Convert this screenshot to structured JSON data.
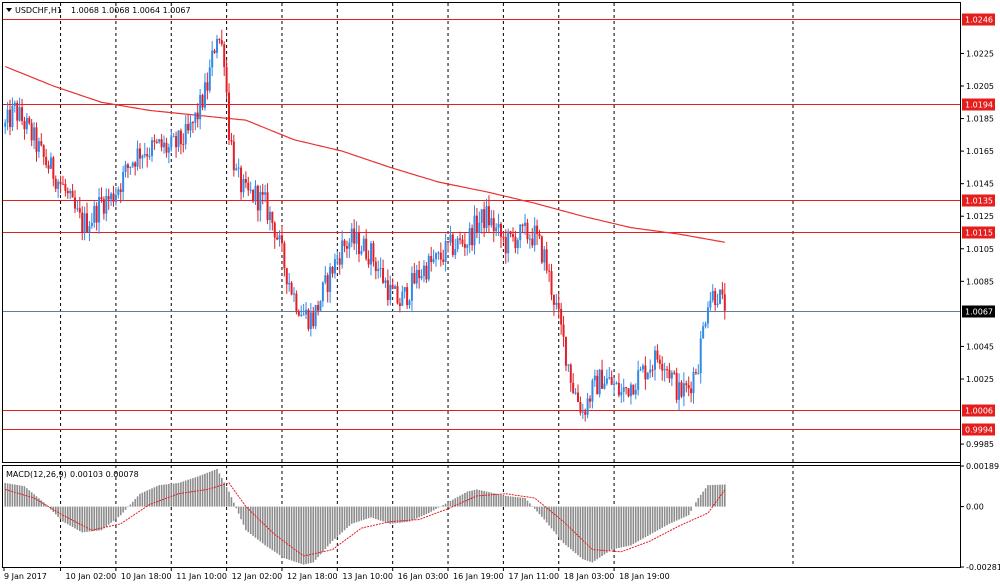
{
  "header": {
    "symbol_label": "USDCHF,H1",
    "ohlc_values": "1.0068 1.0068 1.0064 1.0067"
  },
  "indicator": {
    "label": "MACD(12,26,9)",
    "values": "0.00103 0.00078"
  },
  "colors": {
    "bull": "#2f8ae8",
    "bear": "#e21f26",
    "level_line": "#e41d1d",
    "ma_line": "#e83232",
    "current_price_line": "#5a7fa3",
    "macd_hist": "#8c8c8c",
    "signal_line": "#e21f26"
  },
  "chart_data": [
    {
      "type": "candlestick",
      "symbol": "USDCHF",
      "timeframe": "H1",
      "ylim": [
        0.9974,
        1.0256
      ],
      "y_ticks": [
        "1.0225",
        "1.0205",
        "1.0185",
        "1.0165",
        "1.0145",
        "1.0125",
        "1.0105",
        "1.0085",
        "1.0045",
        "1.0025",
        "0.9985"
      ],
      "x_ticks": [
        "9 Jan 2017",
        "10 Jan 02:00",
        "10 Jan 18:00",
        "11 Jan 10:00",
        "12 Jan 02:00",
        "12 Jan 18:00",
        "13 Jan 10:00",
        "16 Jan 03:00",
        "16 Jan 19:00",
        "17 Jan 11:00",
        "18 Jan 03:00",
        "18 Jan 19:00"
      ],
      "levels": [
        "1.0246",
        "1.0194",
        "1.0135",
        "1.0115",
        "1.0006",
        "0.9994"
      ],
      "current_price": "1.0067",
      "close_path": [
        [
          0,
          1.018
        ],
        [
          4,
          1.019
        ],
        [
          8,
          1.0182
        ],
        [
          12,
          1.0172
        ],
        [
          16,
          1.016
        ],
        [
          20,
          1.0152
        ],
        [
          24,
          1.0143
        ],
        [
          28,
          1.013
        ],
        [
          32,
          1.012
        ],
        [
          36,
          1.0124
        ],
        [
          40,
          1.0134
        ],
        [
          44,
          1.0136
        ],
        [
          48,
          1.0146
        ],
        [
          52,
          1.0158
        ],
        [
          56,
          1.0165
        ],
        [
          60,
          1.0166
        ],
        [
          64,
          1.0168
        ],
        [
          68,
          1.0166
        ],
        [
          72,
          1.017
        ],
        [
          76,
          1.0175
        ],
        [
          80,
          1.0188
        ],
        [
          84,
          1.0205
        ],
        [
          88,
          1.0238
        ],
        [
          91,
          1.0224
        ],
        [
          93,
          1.0178
        ],
        [
          96,
          1.015
        ],
        [
          100,
          1.0138
        ],
        [
          104,
          1.0138
        ],
        [
          108,
          1.0132
        ],
        [
          112,
          1.0118
        ],
        [
          116,
          1.0095
        ],
        [
          120,
          1.0076
        ],
        [
          124,
          1.0065
        ],
        [
          128,
          1.0062
        ],
        [
          132,
          1.0078
        ],
        [
          136,
          1.0093
        ],
        [
          140,
          1.0106
        ],
        [
          144,
          1.011
        ],
        [
          148,
          1.0107
        ],
        [
          152,
          1.0102
        ],
        [
          156,
          1.009
        ],
        [
          160,
          1.0078
        ],
        [
          164,
          1.0072
        ],
        [
          168,
          1.008
        ],
        [
          172,
          1.009
        ],
        [
          176,
          1.0095
        ],
        [
          180,
          1.0098
        ],
        [
          184,
          1.0105
        ],
        [
          188,
          1.0108
        ],
        [
          192,
          1.011
        ],
        [
          196,
          1.012
        ],
        [
          200,
          1.0125
        ],
        [
          204,
          1.0116
        ],
        [
          208,
          1.0108
        ],
        [
          212,
          1.0112
        ],
        [
          216,
          1.0114
        ],
        [
          220,
          1.0113
        ],
        [
          224,
          1.01
        ],
        [
          228,
          1.0075
        ],
        [
          232,
          1.0048
        ],
        [
          236,
          1.002
        ],
        [
          240,
          1.0005
        ],
        [
          244,
          1.0018
        ],
        [
          248,
          1.0026
        ],
        [
          252,
          1.0022
        ],
        [
          256,
          1.0016
        ],
        [
          260,
          1.0022
        ],
        [
          264,
          1.0028
        ],
        [
          268,
          1.0034
        ],
        [
          272,
          1.004
        ],
        [
          276,
          1.003
        ],
        [
          280,
          1.0016
        ],
        [
          284,
          1.002
        ],
        [
          288,
          1.0036
        ],
        [
          292,
          1.0075
        ],
        [
          296,
          1.0078
        ],
        [
          299,
          1.0067
        ]
      ],
      "sma_path": [
        [
          0,
          1.0217
        ],
        [
          20,
          1.0205
        ],
        [
          40,
          1.0195
        ],
        [
          60,
          1.019
        ],
        [
          80,
          1.0187
        ],
        [
          100,
          1.0184
        ],
        [
          120,
          1.0172
        ],
        [
          140,
          1.0165
        ],
        [
          160,
          1.0155
        ],
        [
          180,
          1.0146
        ],
        [
          200,
          1.014
        ],
        [
          220,
          1.0133
        ],
        [
          240,
          1.0125
        ],
        [
          260,
          1.0118
        ],
        [
          280,
          1.0114
        ],
        [
          299,
          1.0109
        ]
      ]
    },
    {
      "type": "bar",
      "title": "MACD(12,26,9)",
      "ylim": [
        -0.00281,
        0.00189
      ],
      "y_ticks": [
        "0.00189",
        "0.00",
        "-0.00281"
      ],
      "histogram_path": [
        [
          0,
          0.0011
        ],
        [
          8,
          0.00095
        ],
        [
          16,
          0.0002
        ],
        [
          24,
          -0.0007
        ],
        [
          32,
          -0.0012
        ],
        [
          40,
          -0.0011
        ],
        [
          48,
          -0.0004
        ],
        [
          56,
          0.0006
        ],
        [
          64,
          0.001
        ],
        [
          72,
          0.0011
        ],
        [
          80,
          0.0014
        ],
        [
          88,
          0.00175
        ],
        [
          93,
          0.0007
        ],
        [
          100,
          -0.0011
        ],
        [
          108,
          -0.0018
        ],
        [
          116,
          -0.0024
        ],
        [
          124,
          -0.0027
        ],
        [
          128,
          -0.0026
        ],
        [
          136,
          -0.0016
        ],
        [
          144,
          -0.0008
        ],
        [
          152,
          -0.0005
        ],
        [
          160,
          -0.0008
        ],
        [
          168,
          -0.0007
        ],
        [
          176,
          -0.0003
        ],
        [
          184,
          0.0002
        ],
        [
          192,
          0.0007
        ],
        [
          196,
          0.0008
        ],
        [
          200,
          0.0007
        ],
        [
          208,
          0.0005
        ],
        [
          216,
          0.0004
        ],
        [
          224,
          -0.0006
        ],
        [
          232,
          -0.0017
        ],
        [
          240,
          -0.00245
        ],
        [
          244,
          -0.0026
        ],
        [
          252,
          -0.002
        ],
        [
          260,
          -0.0018
        ],
        [
          268,
          -0.0013
        ],
        [
          276,
          -0.0008
        ],
        [
          284,
          -0.0004
        ],
        [
          288,
          0.0004
        ],
        [
          292,
          0.001
        ],
        [
          299,
          0.00103
        ]
      ],
      "signal_path": [
        [
          0,
          0.0008
        ],
        [
          12,
          0.0004
        ],
        [
          24,
          -0.0004
        ],
        [
          36,
          -0.0011
        ],
        [
          48,
          -0.0008
        ],
        [
          60,
          0.0001
        ],
        [
          72,
          0.0006
        ],
        [
          84,
          0.0008
        ],
        [
          93,
          0.0011
        ],
        [
          100,
          0.0
        ],
        [
          112,
          -0.0013
        ],
        [
          124,
          -0.0023
        ],
        [
          136,
          -0.002
        ],
        [
          148,
          -0.001
        ],
        [
          160,
          -0.0007
        ],
        [
          172,
          -0.0006
        ],
        [
          184,
          -0.0001
        ],
        [
          196,
          0.0005
        ],
        [
          208,
          0.0006
        ],
        [
          220,
          0.0004
        ],
        [
          232,
          -0.0007
        ],
        [
          244,
          -0.002
        ],
        [
          256,
          -0.0021
        ],
        [
          268,
          -0.0016
        ],
        [
          280,
          -0.0009
        ],
        [
          292,
          -0.0003
        ],
        [
          299,
          0.00078
        ]
      ]
    }
  ]
}
